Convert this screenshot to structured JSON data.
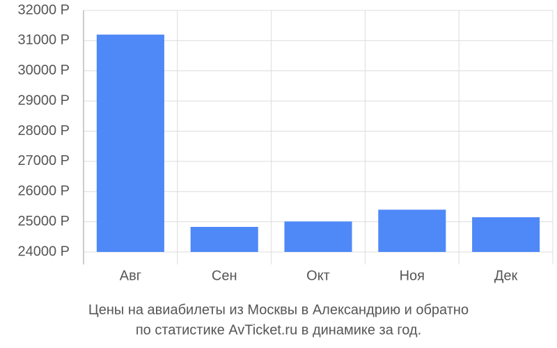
{
  "chart_data": {
    "type": "bar",
    "caption": [
      "Цены на авиабилеты из Москвы в Александрию и обратно",
      "по статистике AvTicket.ru в динамике за год."
    ],
    "categories": [
      "Авг",
      "Сен",
      "Окт",
      "Ноя",
      "Дек"
    ],
    "values": [
      31200,
      24830,
      25010,
      25400,
      25150
    ],
    "color": "#4f88f7",
    "ylim": [
      24000,
      32000
    ],
    "yticks": [
      {
        "value": 24000,
        "label": "24000 Р"
      },
      {
        "value": 25000,
        "label": "25000 Р"
      },
      {
        "value": 26000,
        "label": "26000 Р"
      },
      {
        "value": 27000,
        "label": "27000 Р"
      },
      {
        "value": 28000,
        "label": "28000 Р"
      },
      {
        "value": 29000,
        "label": "29000 Р"
      },
      {
        "value": 30000,
        "label": "30000 Р"
      },
      {
        "value": 31000,
        "label": "31000 Р"
      },
      {
        "value": 32000,
        "label": "32000 Р"
      }
    ],
    "grid": true
  }
}
